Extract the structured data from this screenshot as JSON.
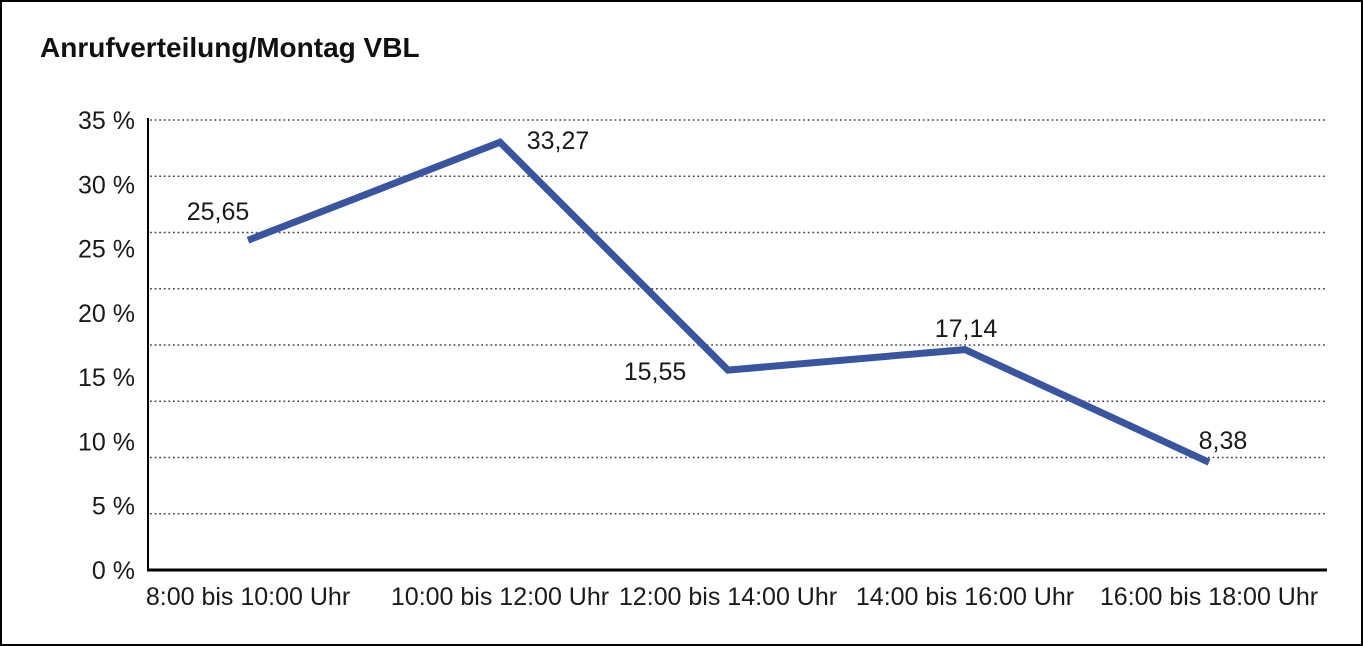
{
  "title": "Anrufverteilung/Montag VBL",
  "chart_data": {
    "type": "line",
    "title": "Anrufverteilung/Montag VBL",
    "categories": [
      "8:00 bis 10:00 Uhr",
      "10:00 bis 12:00 Uhr",
      "12:00 bis 14:00 Uhr",
      "14:00 bis 16:00 Uhr",
      "16:00 bis 18:00 Uhr"
    ],
    "series": [
      {
        "name": "Anrufverteilung Montag VBL",
        "values": [
          25.65,
          33.27,
          15.55,
          17.14,
          8.38
        ],
        "value_labels": [
          "25,65",
          "33,27",
          "15,55",
          "17,14",
          "8,38"
        ]
      }
    ],
    "ylabel": "",
    "xlabel": "",
    "ylim": [
      0,
      35
    ],
    "ytick_labels": [
      "0 %",
      "5 %",
      "10 %",
      "15 %",
      "20 %",
      "25 %",
      "30 %",
      "35 %"
    ],
    "grid": "horizontal-dotted",
    "legend_position": "none",
    "line_color": "#3A55A0",
    "axis_color": "#000000",
    "grid_color": "#474747",
    "text_color": "#1a1a1a"
  }
}
